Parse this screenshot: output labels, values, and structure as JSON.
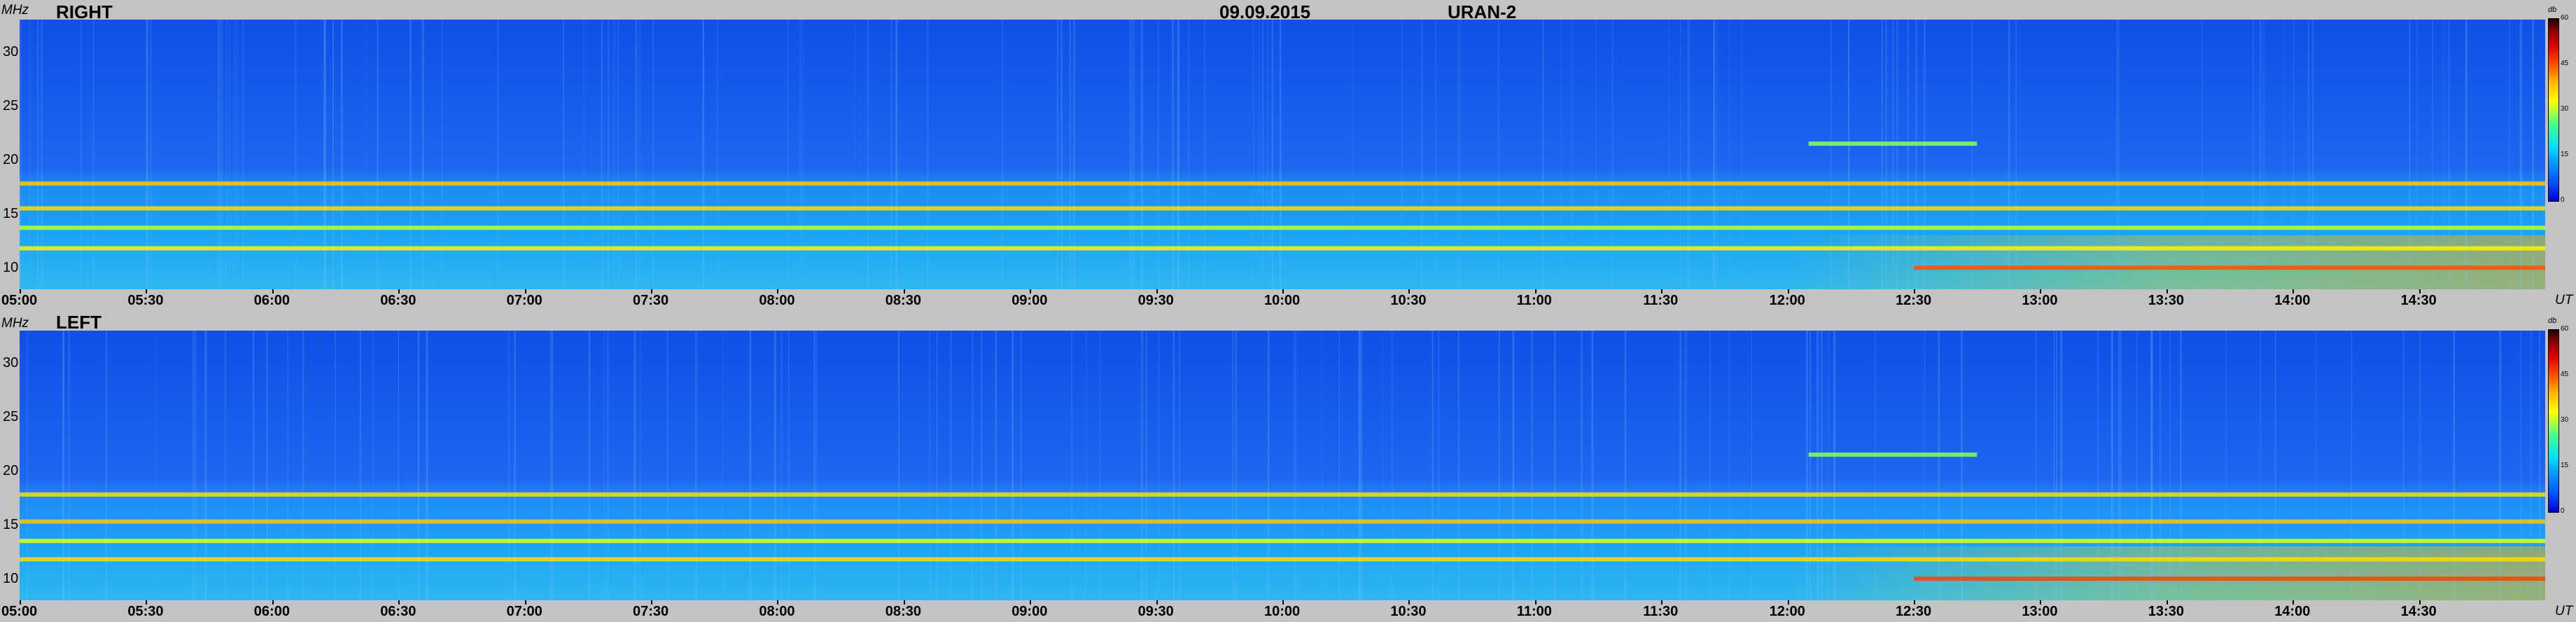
{
  "header": {
    "date": "09.09.2015",
    "instrument": "URAN-2"
  },
  "panels": [
    {
      "label": "RIGHT"
    },
    {
      "label": "LEFT"
    }
  ],
  "axes": {
    "y_unit": "MHz",
    "x_unit": "UT",
    "colorbar_unit": "db",
    "y_ticks": [
      "30",
      "25",
      "20",
      "15",
      "10"
    ],
    "x_ticks": [
      "05:00",
      "05:30",
      "06:00",
      "06:30",
      "07:00",
      "07:30",
      "08:00",
      "08:30",
      "09:00",
      "09:30",
      "10:00",
      "10:30",
      "11:00",
      "11:30",
      "12:00",
      "12:30",
      "13:00",
      "13:30",
      "14:00",
      "14:30"
    ],
    "colorbar_ticks": [
      "60",
      "45",
      "30",
      "15",
      "0"
    ]
  },
  "chart_data": [
    {
      "type": "heatmap",
      "title": "RIGHT",
      "xlabel": "UT",
      "ylabel": "MHz",
      "xlim": [
        "05:00",
        "15:00"
      ],
      "ylim": [
        8,
        33
      ],
      "color_scale": {
        "label": "db",
        "range": [
          0,
          60
        ]
      },
      "bands": [
        {
          "freq_mhz": 17.8,
          "level_db": 38,
          "from": "05:00",
          "to": "15:00"
        },
        {
          "freq_mhz": 15.5,
          "level_db": 36,
          "from": "05:00",
          "to": "15:00"
        },
        {
          "freq_mhz": 13.7,
          "level_db": 30,
          "from": "05:00",
          "to": "15:00"
        },
        {
          "freq_mhz": 11.8,
          "level_db": 34,
          "from": "05:00",
          "to": "15:00"
        },
        {
          "freq_mhz": 10.0,
          "level_db": 45,
          "from": "12:30",
          "to": "15:00"
        },
        {
          "freq_mhz": 21.5,
          "level_db": 28,
          "from": "12:05",
          "to": "12:45"
        }
      ]
    },
    {
      "type": "heatmap",
      "title": "LEFT",
      "xlabel": "UT",
      "ylabel": "MHz",
      "xlim": [
        "05:00",
        "15:00"
      ],
      "ylim": [
        8,
        33
      ],
      "color_scale": {
        "label": "db",
        "range": [
          0,
          60
        ]
      },
      "bands": [
        {
          "freq_mhz": 17.8,
          "level_db": 36,
          "from": "05:00",
          "to": "15:00"
        },
        {
          "freq_mhz": 15.3,
          "level_db": 38,
          "from": "05:00",
          "to": "15:00"
        },
        {
          "freq_mhz": 13.5,
          "level_db": 32,
          "from": "05:00",
          "to": "15:00"
        },
        {
          "freq_mhz": 11.8,
          "level_db": 36,
          "from": "05:00",
          "to": "15:00"
        },
        {
          "freq_mhz": 10.0,
          "level_db": 46,
          "from": "12:30",
          "to": "15:00"
        },
        {
          "freq_mhz": 21.5,
          "level_db": 28,
          "from": "12:05",
          "to": "12:45"
        }
      ]
    }
  ]
}
